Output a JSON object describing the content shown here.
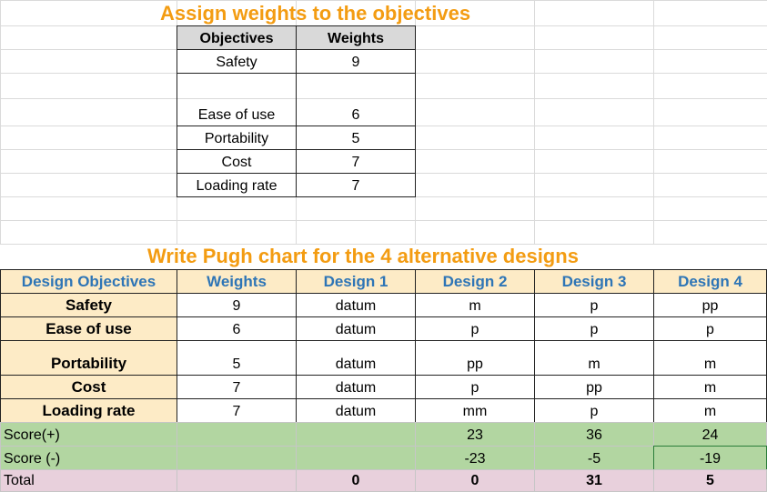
{
  "title1": "Assign weights to the objectives",
  "table1": {
    "headers": [
      "Objectives",
      "Weights"
    ],
    "rows": [
      [
        "Safety",
        "9"
      ],
      [
        "Ease of use",
        "6"
      ],
      [
        "Portability",
        "5"
      ],
      [
        "Cost",
        "7"
      ],
      [
        "Loading rate",
        "7"
      ]
    ]
  },
  "title2": "Write Pugh chart for the 4 alternative designs",
  "pugh": {
    "headers": [
      "Design Objectives",
      "Weights",
      "Design 1",
      "Design 2",
      "Design 3",
      "Design 4"
    ],
    "rows": [
      [
        "Safety",
        "9",
        "datum",
        "m",
        "p",
        "pp"
      ],
      [
        "Ease of use",
        "6",
        "datum",
        "p",
        "p",
        "p"
      ],
      [
        "Portability",
        "5",
        "datum",
        "pp",
        "m",
        "m"
      ],
      [
        "Cost",
        "7",
        "datum",
        "p",
        "pp",
        "m"
      ],
      [
        "Loading rate",
        "7",
        "datum",
        "mm",
        "p",
        "m"
      ]
    ],
    "score_plus": {
      "label": "Score(+)",
      "values": [
        "",
        "",
        "23",
        "36",
        "24"
      ]
    },
    "score_minus": {
      "label": "Score (-)",
      "values": [
        "",
        "",
        "-23",
        "-5",
        "-19"
      ]
    },
    "total": {
      "label": "Total",
      "values": [
        "",
        "0",
        "0",
        "31",
        "5"
      ]
    }
  },
  "colors": {
    "title": "#f39c12",
    "header_text": "#2e75b6",
    "header_fill": "#fdebc6",
    "score_fill": "#b2d6a1",
    "total_fill": "#e8d0dc",
    "table1_header_fill": "#d9d9d9"
  }
}
